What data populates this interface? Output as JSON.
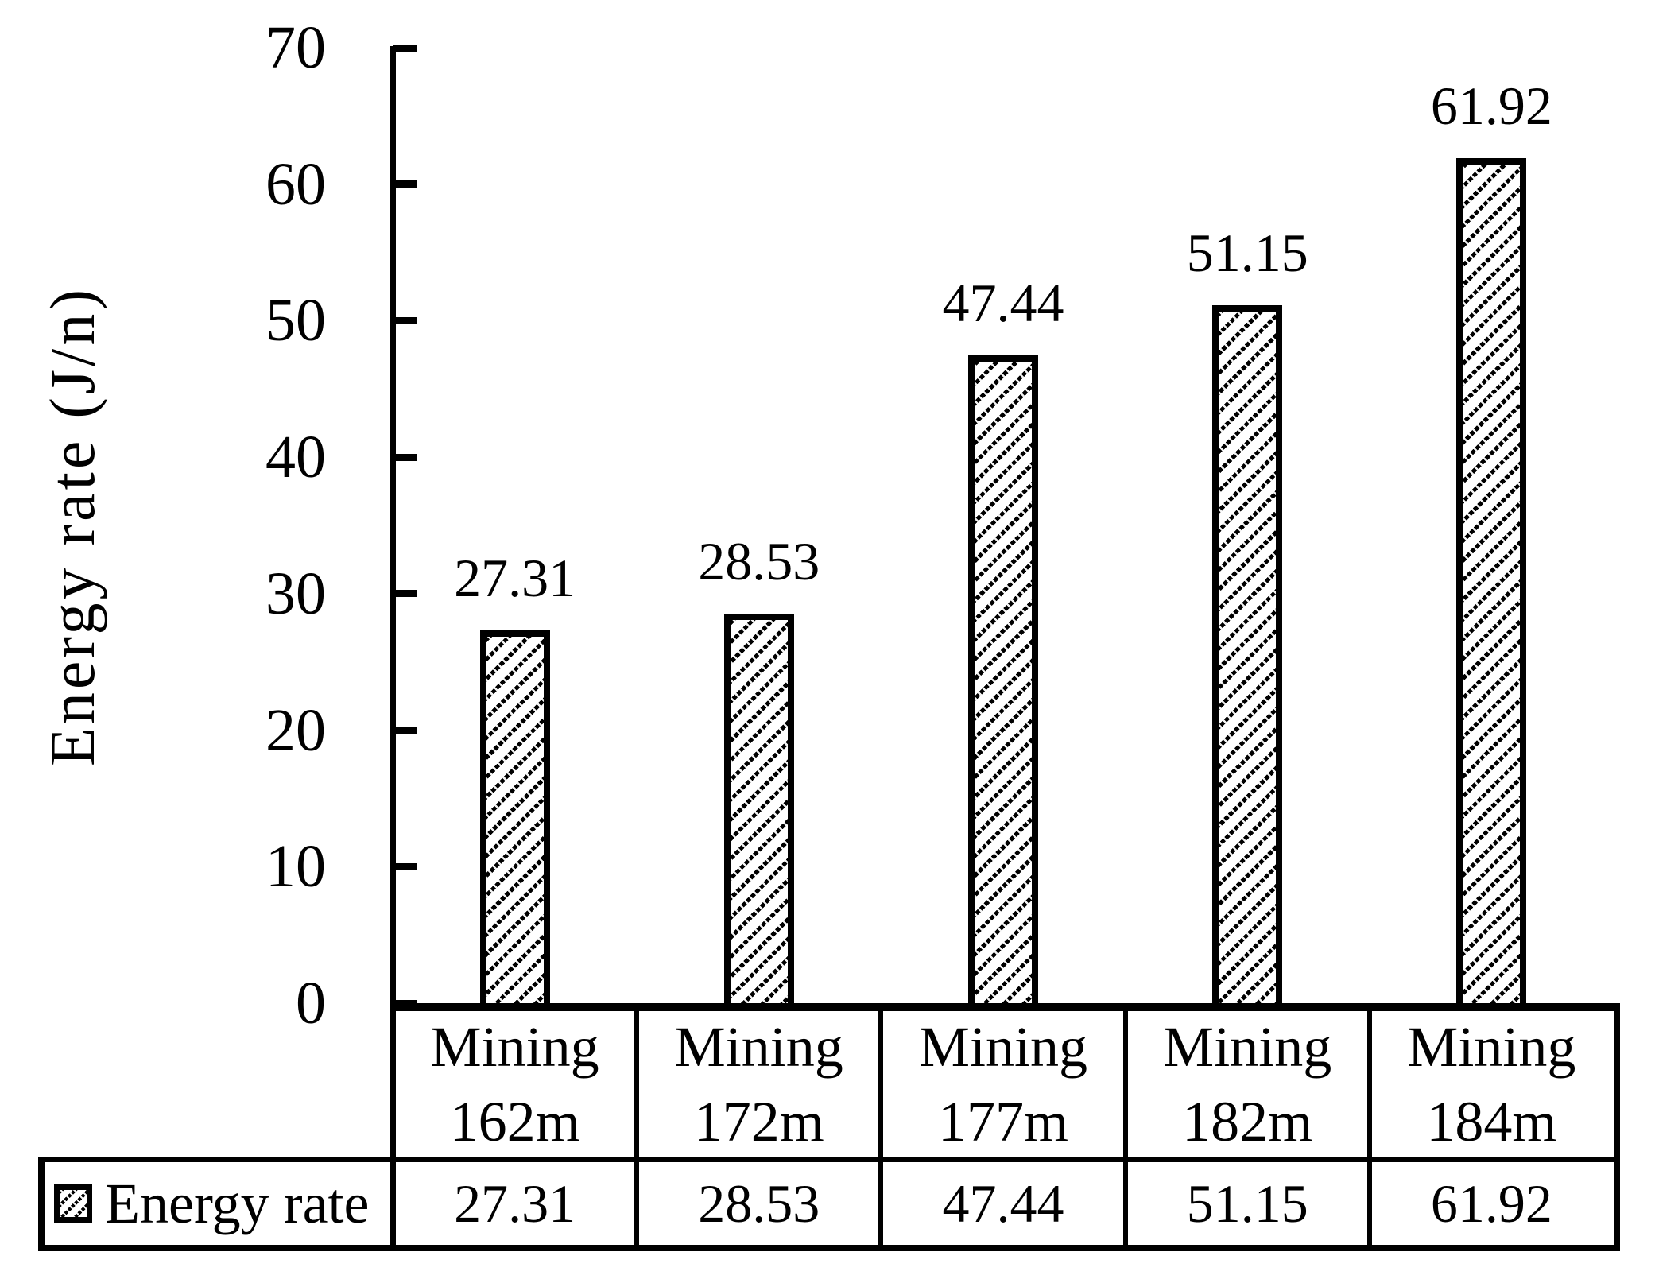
{
  "chart_data": {
    "type": "bar",
    "title": "",
    "ylabel": "Energy rate (J/n)",
    "xlabel": "",
    "ylim": [
      0,
      70
    ],
    "yticks": [
      0,
      10,
      20,
      30,
      40,
      50,
      60,
      70
    ],
    "grid": false,
    "categories": [
      [
        "Mining",
        "162m"
      ],
      [
        "Mining",
        "172m"
      ],
      [
        "Mining",
        "177m"
      ],
      [
        "Mining",
        "182m"
      ],
      [
        "Mining",
        "184m"
      ]
    ],
    "series": [
      {
        "name": "Energy rate",
        "values": [
          27.31,
          28.53,
          47.44,
          51.15,
          61.92
        ],
        "value_labels": [
          "27.31",
          "28.53",
          "47.44",
          "51.15",
          "61.92"
        ]
      }
    ],
    "legend": {
      "position": "bottom-table",
      "label": "Energy rate",
      "row_values": [
        "27.31",
        "28.53",
        "47.44",
        "51.15",
        "61.92"
      ]
    },
    "bar_style": "white fill with black diagonal hatch, black outline",
    "colors": {
      "foreground": "#000000",
      "background": "#ffffff"
    }
  }
}
